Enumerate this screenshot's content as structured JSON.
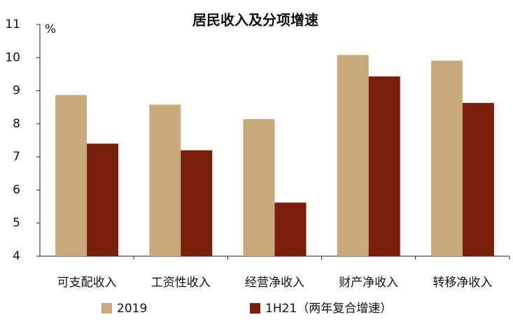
{
  "chart_data": {
    "type": "bar",
    "title": "居民收入及分项增速",
    "y_label": "%",
    "categories": [
      "可支配收入",
      "工资性收入",
      "经营净收入",
      "财产净收入",
      "转移净收入"
    ],
    "series": [
      {
        "name": "2019",
        "color": "#c9aa7c",
        "values": [
          8.87,
          8.58,
          8.14,
          10.08,
          9.91
        ]
      },
      {
        "name": "1H21（两年复合增速）",
        "color": "#7a1f0b",
        "values": [
          7.4,
          7.2,
          5.62,
          9.43,
          8.63
        ]
      }
    ],
    "ylim": [
      4,
      11
    ],
    "yticks": [
      4,
      5,
      6,
      7,
      8,
      9,
      10,
      11
    ],
    "grid": false,
    "legend": "bottom"
  }
}
